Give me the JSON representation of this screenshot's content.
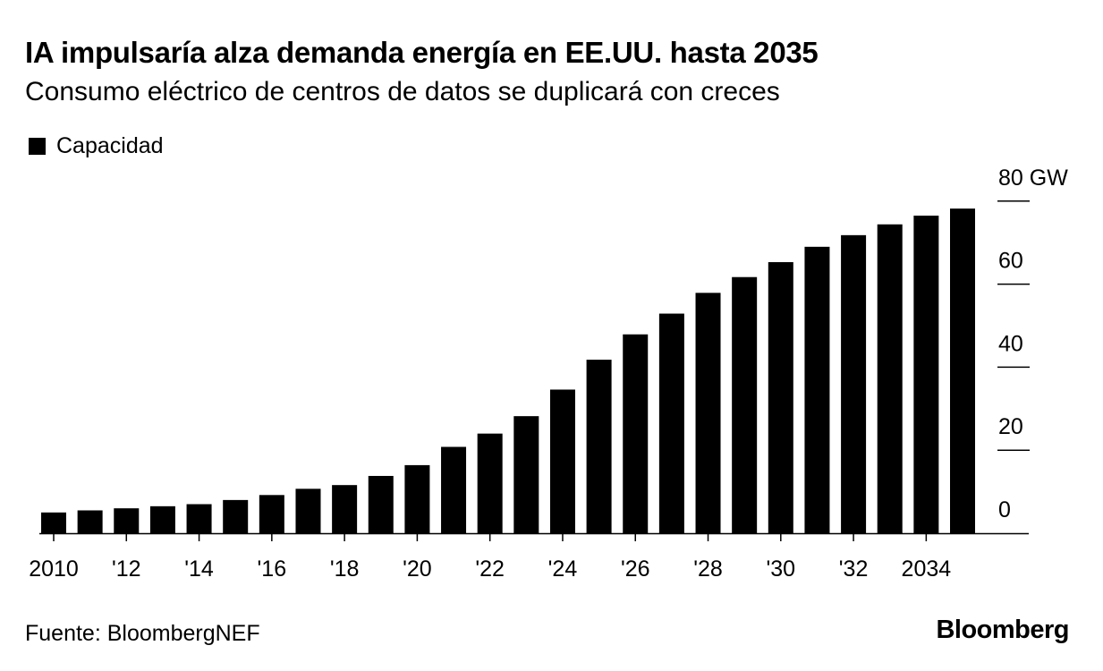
{
  "header": {
    "title": "IA impulsaría alza demanda energía en EE.UU. hasta 2035",
    "subtitle": "Consumo eléctrico de centros de datos se duplicará con creces"
  },
  "legend": {
    "label": "Capacidad",
    "color": "#000000"
  },
  "footer": {
    "source": "Fuente: BloombergNEF",
    "brand": "Bloomberg"
  },
  "chart_data": {
    "type": "bar",
    "title": "IA impulsaría alza demanda energía en EE.UU. hasta 2035",
    "subtitle": "Consumo eléctrico de centros de datos se duplicará con creces",
    "xlabel": "",
    "ylabel": "",
    "y_unit": "GW",
    "ylim": [
      0,
      80
    ],
    "y_ticks": [
      0,
      20,
      40,
      60,
      80
    ],
    "y_tick_labels": [
      "0",
      "20",
      "40",
      "60",
      "80 GW"
    ],
    "y_axis_position": "right",
    "grid": false,
    "legend_position": "top-left",
    "bar_color": "#000000",
    "categories": [
      "2010",
      "2011",
      "2012",
      "2013",
      "2014",
      "2015",
      "2016",
      "2017",
      "2018",
      "2019",
      "2020",
      "2021",
      "2022",
      "2023",
      "2024",
      "2025",
      "2026",
      "2027",
      "2028",
      "2029",
      "2030",
      "2031",
      "2032",
      "2033",
      "2034",
      "2035"
    ],
    "x_tick_labels": [
      "2010",
      "'12",
      "'14",
      "'16",
      "'18",
      "'20",
      "'22",
      "'24",
      "'26",
      "'28",
      "'30",
      "'32",
      "2034"
    ],
    "x_tick_years": [
      2010,
      2012,
      2014,
      2016,
      2018,
      2020,
      2022,
      2024,
      2026,
      2028,
      2030,
      2032,
      2034
    ],
    "series": [
      {
        "name": "Capacidad",
        "values": [
          5.0,
          5.5,
          6.0,
          6.5,
          7.0,
          8.0,
          9.2,
          10.7,
          11.6,
          13.8,
          16.4,
          20.8,
          24.0,
          28.2,
          34.6,
          41.8,
          47.9,
          52.9,
          57.9,
          61.7,
          65.3,
          69.0,
          71.8,
          74.4,
          76.5,
          78.2
        ]
      }
    ]
  }
}
